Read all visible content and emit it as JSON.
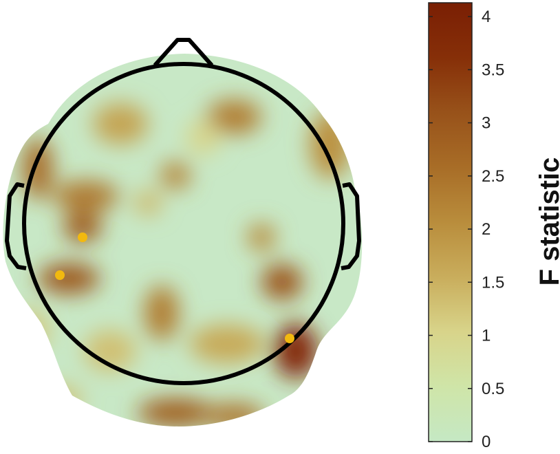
{
  "chart_data": {
    "type": "heatmap",
    "subtype": "eeg-scalp-topography",
    "colorbar": {
      "label": "F statistic",
      "range": [
        0,
        4.13
      ],
      "ticks": [
        0,
        0.5,
        1,
        1.5,
        2,
        2.5,
        3,
        3.5,
        4
      ],
      "tick_labels": [
        "0",
        "0.5",
        "1",
        "1.5",
        "2",
        "2.5",
        "3",
        "3.5",
        "4"
      ],
      "colormap": [
        "#c5e8c4",
        "#cfe5a8",
        "#d8d48a",
        "#c9ad5c",
        "#b98d3c",
        "#a86d27",
        "#98521a",
        "#862f08",
        "#7a1f04"
      ]
    },
    "significant_markers_color": "#f2b90f",
    "significant_marker_count": 3,
    "outline_color": "#000000"
  }
}
